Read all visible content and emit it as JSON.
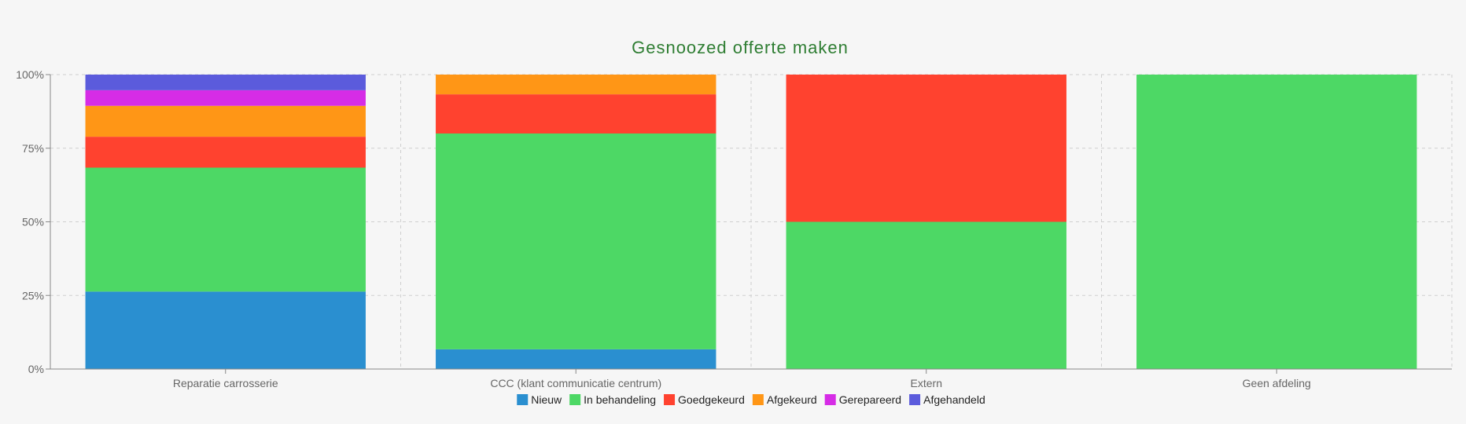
{
  "chart_data": {
    "type": "bar",
    "stacked": true,
    "normalized": true,
    "title": "Gesnoozed offerte maken",
    "xlabel": "",
    "ylabel": "",
    "ylim": [
      0,
      100
    ],
    "yticks": [
      "0%",
      "25%",
      "50%",
      "75%",
      "100%"
    ],
    "grid": true,
    "legend_position": "bottom",
    "categories": [
      "Reparatie carrosserie",
      "CCC (klant communicatie centrum)",
      "Extern",
      "Geen afdeling"
    ],
    "series": [
      {
        "name": "Nieuw",
        "color": "#2a8fd0",
        "values": [
          26.3,
          6.7,
          0,
          0
        ]
      },
      {
        "name": "In behandeling",
        "color": "#4dd865",
        "values": [
          42.1,
          73.3,
          50,
          100
        ]
      },
      {
        "name": "Goedgekeurd",
        "color": "#ff422f",
        "values": [
          10.5,
          13.3,
          50,
          0
        ]
      },
      {
        "name": "Afgekeurd",
        "color": "#ff9616",
        "values": [
          10.5,
          6.7,
          0,
          0
        ]
      },
      {
        "name": "Gerepareerd",
        "color": "#d62ce6",
        "values": [
          5.3,
          0,
          0,
          0
        ]
      },
      {
        "name": "Afgehandeld",
        "color": "#5b5bdc",
        "values": [
          5.3,
          0,
          0,
          0
        ]
      }
    ]
  }
}
